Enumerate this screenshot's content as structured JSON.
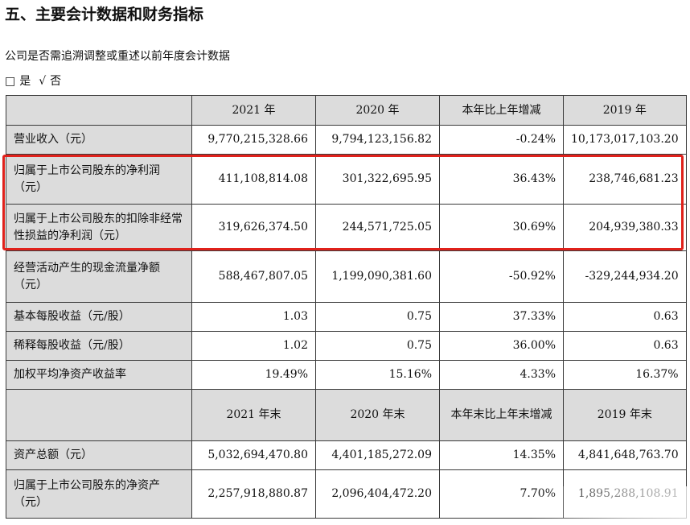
{
  "section_title": "五、主要会计数据和财务指标",
  "restatement_question": "公司是否需追溯调整或重述以前年度会计数据",
  "choice": {
    "yes_box": "□",
    "yes_label": "是",
    "no_mark": "√",
    "no_label": "否"
  },
  "table1": {
    "headers": [
      "",
      "2021 年",
      "2020 年",
      "本年比上年增减",
      "2019 年"
    ],
    "rows": [
      {
        "label": "营业收入（元）",
        "values": [
          "9,770,215,328.66",
          "9,794,123,156.82",
          "-0.24%",
          "10,173,017,103.20"
        ]
      },
      {
        "label": "归属于上市公司股东的净利润（元）",
        "values": [
          "411,108,814.08",
          "301,322,695.95",
          "36.43%",
          "238,746,681.23"
        ]
      },
      {
        "label": "归属于上市公司股东的扣除非经常性损益的净利润（元）",
        "values": [
          "319,626,374.50",
          "244,571,725.05",
          "30.69%",
          "204,939,380.33"
        ]
      },
      {
        "label": "经营活动产生的现金流量净额（元）",
        "values": [
          "588,467,807.05",
          "1,199,090,381.60",
          "-50.92%",
          "-329,244,934.20"
        ]
      },
      {
        "label": "基本每股收益（元/股）",
        "values": [
          "1.03",
          "0.75",
          "37.33%",
          "0.63"
        ]
      },
      {
        "label": "稀释每股收益（元/股）",
        "values": [
          "1.02",
          "0.75",
          "36.00%",
          "0.63"
        ]
      },
      {
        "label": "加权平均净资产收益率",
        "values": [
          "19.49%",
          "15.16%",
          "4.33%",
          "16.37%"
        ]
      }
    ]
  },
  "table2": {
    "headers": [
      "",
      "2021 年末",
      "2020 年末",
      "本年末比上年末增减",
      "2019 年末"
    ],
    "rows": [
      {
        "label": "资产总额（元）",
        "values": [
          "5,032,694,470.80",
          "4,401,185,272.09",
          "14.35%",
          "4,841,648,763.70"
        ]
      },
      {
        "label": "归属于上市公司股东的净资产（元）",
        "values": [
          "2,257,918,880.87",
          "2,096,404,472.20",
          "7.70%",
          "1,895,288,108.91"
        ]
      }
    ]
  },
  "highlight_color": "#e0211b",
  "header_fill": "#dcdcdc"
}
